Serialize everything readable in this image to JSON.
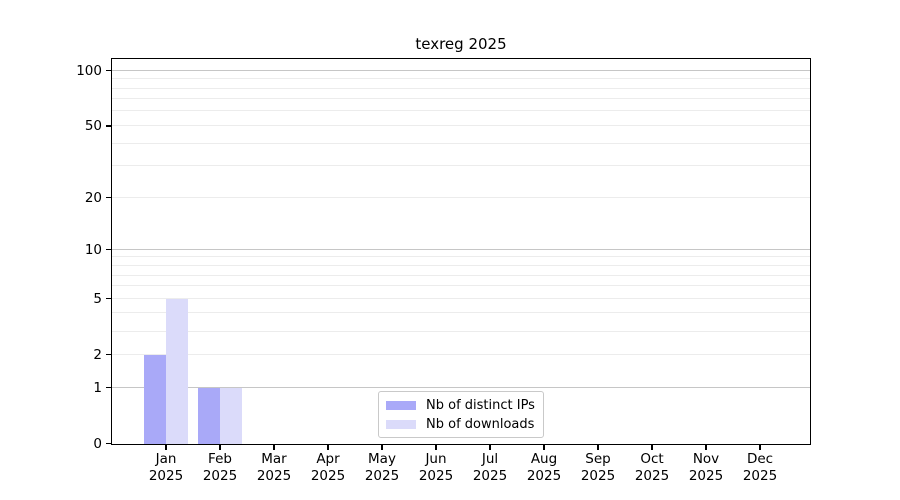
{
  "chart_data": {
    "type": "bar",
    "title": "texreg 2025",
    "categories": [
      {
        "month": "Jan",
        "year": "2025"
      },
      {
        "month": "Feb",
        "year": "2025"
      },
      {
        "month": "Mar",
        "year": "2025"
      },
      {
        "month": "Apr",
        "year": "2025"
      },
      {
        "month": "May",
        "year": "2025"
      },
      {
        "month": "Jun",
        "year": "2025"
      },
      {
        "month": "Jul",
        "year": "2025"
      },
      {
        "month": "Aug",
        "year": "2025"
      },
      {
        "month": "Sep",
        "year": "2025"
      },
      {
        "month": "Oct",
        "year": "2025"
      },
      {
        "month": "Nov",
        "year": "2025"
      },
      {
        "month": "Dec",
        "year": "2025"
      }
    ],
    "series": [
      {
        "name": "Nb of distinct IPs",
        "color": "#a9a9f8",
        "values": [
          2,
          1,
          0,
          0,
          0,
          0,
          0,
          0,
          0,
          0,
          0,
          0
        ]
      },
      {
        "name": "Nb of downloads",
        "color": "#dbdbfa",
        "values": [
          5,
          1,
          0,
          0,
          0,
          0,
          0,
          0,
          0,
          0,
          0,
          0
        ]
      }
    ],
    "y_axis": {
      "scale": "log10(1+x)",
      "min": 0,
      "max": 115,
      "ticks": [
        0,
        1,
        2,
        5,
        10,
        20,
        50,
        100
      ],
      "major_gridlines": [
        1,
        10,
        100
      ],
      "minor_gridlines": [
        2,
        3,
        4,
        5,
        6,
        7,
        8,
        9,
        20,
        30,
        40,
        50,
        60,
        70,
        80,
        90
      ]
    },
    "legend_position": "lower center",
    "colors": {
      "axis": "#000000",
      "major_grid": "#c6c6c6",
      "minor_grid": "#ececec",
      "legend_border": "#c9c9c9",
      "background": "#ffffff"
    }
  }
}
